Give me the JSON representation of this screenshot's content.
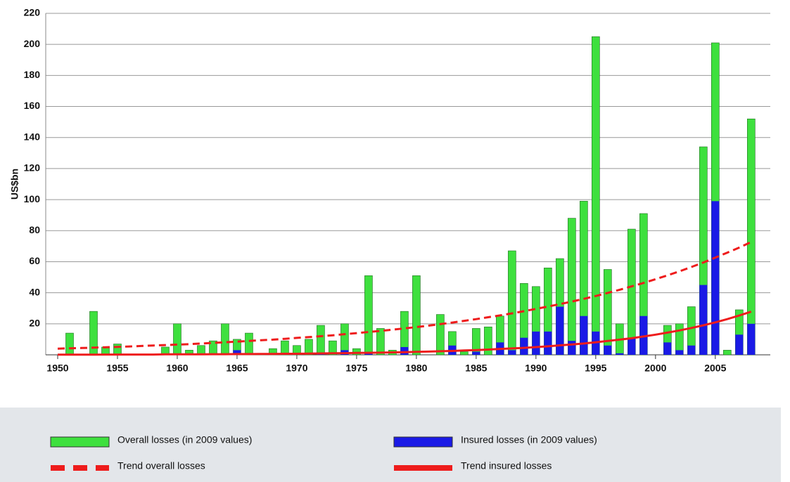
{
  "chart_data": {
    "type": "bar",
    "y_label": "US$bn",
    "x": [
      1950,
      1951,
      1952,
      1953,
      1954,
      1955,
      1956,
      1957,
      1958,
      1959,
      1960,
      1961,
      1962,
      1963,
      1964,
      1965,
      1966,
      1967,
      1968,
      1969,
      1970,
      1971,
      1972,
      1973,
      1974,
      1975,
      1976,
      1977,
      1978,
      1979,
      1980,
      1981,
      1982,
      1983,
      1984,
      1985,
      1986,
      1987,
      1988,
      1989,
      1990,
      1991,
      1992,
      1993,
      1994,
      1995,
      1996,
      1997,
      1998,
      1999,
      2000,
      2001,
      2002,
      2003,
      2004,
      2005,
      2006,
      2007,
      2008
    ],
    "xlim": [
      1949,
      2009.6
    ],
    "xticks": [
      1950,
      1955,
      1960,
      1965,
      1970,
      1975,
      1980,
      1985,
      1990,
      1995,
      2000,
      2005
    ],
    "ylim": [
      0,
      220
    ],
    "yticks": [
      20,
      40,
      60,
      80,
      100,
      120,
      140,
      160,
      180,
      200,
      220
    ],
    "grid": true,
    "series": [
      {
        "name": "Overall losses (in 2009 values)",
        "type": "bar",
        "color": "#3ee03e",
        "values": [
          0,
          14,
          0,
          28,
          5,
          7,
          0,
          0,
          0,
          5,
          20,
          3,
          6,
          9,
          20,
          10,
          14,
          1,
          4,
          9,
          6,
          10,
          19,
          9,
          20,
          4,
          51,
          17,
          3,
          28,
          51,
          0,
          26,
          15,
          2,
          17,
          18,
          25,
          67,
          46,
          44,
          56,
          62,
          88,
          99,
          205,
          55,
          20,
          81,
          91,
          0,
          19,
          20,
          31,
          134,
          201,
          3,
          29,
          152
        ]
      },
      {
        "name": "Insured losses (in 2009 values)",
        "type": "bar",
        "color": "#1a1ae6",
        "values": [
          0,
          0,
          0,
          0,
          0,
          0,
          0,
          0,
          0,
          0,
          0,
          0,
          0,
          0,
          0,
          3,
          0,
          0,
          0,
          0,
          0,
          0,
          1,
          0,
          3,
          0,
          1,
          0,
          0,
          5,
          0,
          0,
          0,
          6,
          0,
          2,
          0,
          8,
          3,
          11,
          15,
          15,
          31,
          9,
          25,
          15,
          6,
          1,
          11,
          25,
          0,
          8,
          3,
          6,
          45,
          99,
          0,
          13,
          20
        ]
      },
      {
        "name": "Trend overall losses",
        "type": "line",
        "dashed": true,
        "color": "#ee1c1c",
        "values": [
          4.0,
          4.2,
          4.4,
          4.6,
          4.9,
          5.1,
          5.4,
          5.7,
          6.0,
          6.3,
          6.6,
          6.9,
          7.3,
          7.7,
          8.1,
          8.5,
          8.9,
          9.4,
          9.8,
          10.3,
          10.9,
          11.4,
          12.0,
          12.6,
          13.3,
          14.0,
          14.7,
          15.4,
          16.2,
          17.0,
          17.9,
          18.8,
          19.8,
          20.8,
          21.9,
          23.0,
          24.2,
          25.4,
          26.7,
          28.1,
          29.6,
          31.1,
          32.7,
          34.3,
          36.1,
          37.9,
          39.9,
          41.9,
          44.1,
          46.3,
          48.7,
          51.2,
          53.8,
          56.6,
          59.5,
          62.6,
          65.8,
          69.1,
          72.7
        ]
      },
      {
        "name": "Trend insured losses",
        "type": "line",
        "dashed": false,
        "color": "#ee1c1c",
        "values": [
          0.1,
          0.1,
          0.1,
          0.1,
          0.2,
          0.2,
          0.2,
          0.2,
          0.2,
          0.3,
          0.3,
          0.3,
          0.3,
          0.4,
          0.4,
          0.5,
          0.5,
          0.6,
          0.6,
          0.7,
          0.7,
          0.8,
          0.9,
          1.0,
          1.1,
          1.2,
          1.3,
          1.4,
          1.6,
          1.7,
          1.9,
          2.1,
          2.3,
          2.5,
          2.8,
          3.1,
          3.4,
          3.8,
          4.1,
          4.5,
          5.0,
          5.5,
          6.1,
          6.7,
          7.3,
          8.1,
          8.9,
          9.8,
          10.7,
          11.8,
          13.0,
          14.3,
          15.7,
          17.3,
          19.0,
          20.9,
          23.0,
          25.3,
          27.8
        ]
      }
    ]
  }
}
